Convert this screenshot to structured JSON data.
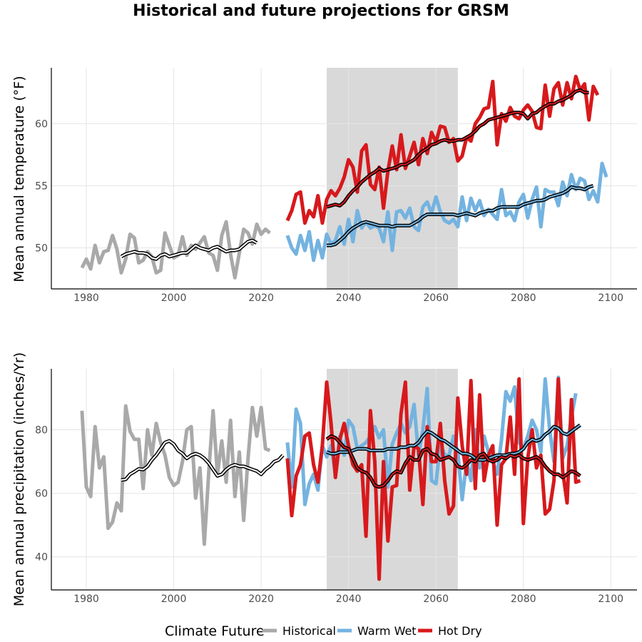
{
  "title": "Historical and future projections for GRSM",
  "colors": {
    "historical": "#a9a9a9",
    "warm_wet": "#74b3e0",
    "hot_dry": "#d7191c",
    "smooth": "#000000",
    "shade": "#d9d9d9",
    "grid": "#e5e5e5"
  },
  "legend": {
    "title": "Climate Future",
    "items": [
      {
        "label": "Historical",
        "color": "#a9a9a9"
      },
      {
        "label": "Warm Wet",
        "color": "#74b3e0"
      },
      {
        "label": "Hot Dry",
        "color": "#d7191c"
      }
    ]
  },
  "chart_data": [
    {
      "type": "line",
      "ylabel": "Mean annual temperature (°F)",
      "xlim": [
        1972,
        2106
      ],
      "ylim": [
        46.7,
        64.5
      ],
      "xticks": [
        1980,
        2000,
        2020,
        2040,
        2060,
        2080,
        2100
      ],
      "yticks": [
        50,
        55,
        60
      ],
      "shaded_period": [
        2035,
        2065
      ],
      "series": [
        {
          "name": "Historical",
          "key": "historical",
          "x_start": 1979,
          "values": [
            48.4,
            49.1,
            48.3,
            50.2,
            48.8,
            49.7,
            49.8,
            51.0,
            49.9,
            48.0,
            49.1,
            51.1,
            50.8,
            48.8,
            49.0,
            49.7,
            49.3,
            48.0,
            48.2,
            51.2,
            50.2,
            49.2,
            49.4,
            50.9,
            49.4,
            50.2,
            49.9,
            50.4,
            50.9,
            49.6,
            49.4,
            48.2,
            51.0,
            52.1,
            49.5,
            47.6,
            49.6,
            51.5,
            51.2,
            50.3,
            51.9,
            51.1,
            51.5,
            51.2
          ],
          "smooth_x_start": 1988,
          "smooth": [
            49.3,
            49.5,
            49.6,
            49.7,
            49.6,
            49.6,
            49.5,
            49.2,
            49.1,
            49.4,
            49.5,
            49.3,
            49.4,
            49.5,
            49.6,
            49.6,
            49.9,
            50.2,
            50.0,
            49.9,
            49.8,
            50.0,
            50.1,
            49.9,
            49.7,
            49.8,
            49.8,
            49.9,
            50.2,
            50.5,
            50.6,
            50.4
          ]
        },
        {
          "name": "Warm Wet",
          "key": "warm_wet",
          "x_start": 2026,
          "values": [
            51.0,
            50.0,
            49.5,
            51.0,
            49.8,
            51.3,
            49.0,
            50.6,
            49.2,
            51.1,
            50.3,
            50.6,
            51.7,
            50.3,
            52.3,
            50.5,
            53.0,
            51.6,
            52.1,
            51.6,
            51.8,
            51.6,
            50.5,
            52.9,
            49.8,
            52.9,
            53.0,
            52.4,
            53.2,
            51.7,
            51.4,
            53.3,
            53.7,
            52.8,
            54.1,
            52.9,
            52.2,
            52.0,
            52.3,
            51.7,
            54.1,
            52.2,
            54.0,
            53.0,
            53.8,
            52.6,
            53.1,
            52.7,
            52.3,
            54.7,
            52.6,
            52.9,
            52.2,
            53.7,
            54.3,
            52.4,
            53.9,
            54.9,
            51.7,
            54.7,
            54.5,
            54.5,
            53.4,
            55.3,
            54.2,
            55.9,
            54.7,
            55.6,
            55.4,
            53.9,
            54.6,
            53.7,
            56.8,
            55.7
          ],
          "smooth_x_start": 2035,
          "smooth": [
            50.2,
            50.2,
            50.3,
            50.6,
            50.9,
            51.3,
            51.6,
            51.8,
            52.0,
            52.1,
            52.0,
            51.9,
            51.8,
            51.8,
            51.8,
            51.7,
            51.8,
            51.8,
            51.8,
            51.8,
            52.0,
            52.2,
            52.5,
            52.7,
            52.7,
            52.7,
            52.7,
            52.7,
            52.7,
            52.7,
            52.6,
            52.7,
            52.8,
            52.7,
            52.6,
            52.8,
            52.9,
            53.0,
            53.0,
            53.2,
            53.3,
            53.3,
            53.3,
            53.3,
            53.3,
            53.5,
            53.6,
            53.7,
            53.8,
            53.8,
            53.9,
            54.1,
            54.2,
            54.3,
            54.4,
            54.6,
            54.9,
            54.8,
            54.8,
            54.7,
            54.9,
            55.0
          ]
        },
        {
          "name": "Hot Dry",
          "key": "hot_dry",
          "x_start": 2026,
          "values": [
            52.2,
            53.0,
            54.3,
            54.5,
            52.0,
            53.0,
            52.5,
            54.2,
            52.0,
            53.9,
            54.6,
            54.2,
            54.8,
            55.7,
            57.1,
            56.5,
            54.5,
            57.8,
            58.3,
            55.1,
            54.7,
            56.5,
            53.2,
            56.2,
            58.2,
            56.3,
            59.1,
            56.4,
            57.4,
            58.5,
            56.7,
            58.8,
            57.6,
            59.3,
            58.5,
            59.8,
            59.7,
            58.5,
            58.8,
            57.0,
            57.4,
            58.9,
            58.6,
            60.0,
            60.5,
            61.2,
            61.3,
            63.4,
            58.3,
            60.8,
            60.2,
            61.3,
            60.6,
            60.4,
            61.1,
            61.5,
            61.0,
            59.7,
            59.6,
            63.1,
            60.6,
            62.8,
            63.3,
            61.5,
            63.3,
            62.0,
            63.8,
            62.7,
            63.2,
            60.3,
            63.0,
            62.3
          ],
          "smooth_x_start": 2035,
          "smooth": [
            53.3,
            53.4,
            53.5,
            53.4,
            53.7,
            54.2,
            54.6,
            54.9,
            55.3,
            55.6,
            55.9,
            56.1,
            56.4,
            56.2,
            56.3,
            56.4,
            56.5,
            56.7,
            56.7,
            56.9,
            57.1,
            57.5,
            57.8,
            58.0,
            58.3,
            58.4,
            58.6,
            58.7,
            58.6,
            58.6,
            58.7,
            58.7,
            58.9,
            59.1,
            59.4,
            59.8,
            60.0,
            60.3,
            60.4,
            60.5,
            60.6,
            60.7,
            60.8,
            60.9,
            60.9,
            60.8,
            60.4,
            60.8,
            60.9,
            61.2,
            61.4,
            61.6,
            61.6,
            61.8,
            61.9,
            62.1,
            62.3,
            62.6,
            62.7,
            62.5,
            62.5
          ]
        }
      ]
    },
    {
      "type": "line",
      "ylabel": "Mean annual precipitation (inches/Yr)",
      "xlim": [
        1972,
        2106
      ],
      "ylim": [
        29.6,
        99.2
      ],
      "xticks": [
        1980,
        2000,
        2020,
        2040,
        2060,
        2080,
        2100
      ],
      "yticks": [
        40,
        60,
        80
      ],
      "shaded_period": [
        2035,
        2065
      ],
      "series": [
        {
          "name": "Historical",
          "key": "historical",
          "x_start": 1979,
          "values": [
            86.0,
            62.0,
            59.0,
            81.0,
            68.0,
            71.5,
            49.0,
            51.0,
            57.0,
            54.5,
            87.5,
            79.5,
            77.0,
            77.0,
            61.5,
            80.0,
            72.0,
            82.0,
            76.0,
            72.0,
            65.0,
            62.5,
            63.5,
            70.0,
            80.0,
            81.0,
            58.5,
            68.0,
            44.0,
            66.5,
            86.0,
            66.0,
            76.5,
            63.5,
            83.0,
            59.0,
            73.0,
            51.5,
            71.0,
            87.0,
            78.0,
            87.0,
            74.0,
            73.5
          ],
          "smooth_x_start": 1988,
          "smooth": [
            64.2,
            64.4,
            66.0,
            66.8,
            67.7,
            67.5,
            68.5,
            70.5,
            72.0,
            74.0,
            76.0,
            76.5,
            75.5,
            73.5,
            72.5,
            71.0,
            72.0,
            72.5,
            72.0,
            71.0,
            69.5,
            67.5,
            65.5,
            66.0,
            67.5,
            68.5,
            69.0,
            68.5,
            68.5,
            68.0,
            67.5,
            67.0,
            66.0,
            67.5,
            68.5,
            70.0,
            70.5,
            72.0
          ]
        },
        {
          "name": "Warm Wet",
          "key": "warm_wet",
          "x_start": 2026,
          "values": [
            76.0,
            62.0,
            86.5,
            82.0,
            56.5,
            63.0,
            66.0,
            61.0,
            75.0,
            71.5,
            75.0,
            66.0,
            78.0,
            72.0,
            83.0,
            81.0,
            74.0,
            75.0,
            76.0,
            78.0,
            81.0,
            77.5,
            80.0,
            62.0,
            75.5,
            79.0,
            82.0,
            79.0,
            81.0,
            88.0,
            72.0,
            80.0,
            93.0,
            64.0,
            63.0,
            76.0,
            72.0,
            72.0,
            78.0,
            73.0,
            58.0,
            70.0,
            64.0,
            80.0,
            68.0,
            78.0,
            73.0,
            70.0,
            66.0,
            77.0,
            92.0,
            89.0,
            93.5,
            76.0,
            74.0,
            78.0,
            83.0,
            80.0,
            73.0,
            96.0,
            80.0,
            70.0,
            96.5,
            71.0,
            75.0,
            84.0,
            91.5
          ],
          "smooth_x_start": 2035,
          "smooth": [
            73.0,
            72.5,
            72.5,
            73.0,
            73.0,
            73.0,
            73.5,
            74.0,
            74.0,
            74.0,
            73.5,
            73.5,
            73.5,
            73.5,
            74.0,
            74.0,
            74.0,
            74.5,
            74.5,
            75.0,
            75.0,
            76.0,
            78.0,
            79.5,
            79.0,
            78.0,
            77.0,
            76.5,
            75.5,
            74.5,
            73.5,
            72.5,
            72.5,
            72.0,
            71.0,
            70.5,
            70.5,
            71.0,
            71.5,
            72.0,
            72.0,
            72.0,
            72.5,
            72.5,
            73.0,
            74.0,
            76.0,
            77.0,
            76.5,
            77.0,
            78.5,
            79.5,
            81.0,
            80.5,
            79.0,
            78.5,
            79.5,
            80.5,
            81.5
          ]
        },
        {
          "name": "Hot Dry",
          "key": "hot_dry",
          "x_start": 2026,
          "values": [
            71.0,
            53.0,
            65.5,
            69.0,
            78.0,
            79.0,
            69.0,
            63.5,
            75.0,
            95.0,
            82.0,
            65.0,
            77.0,
            82.0,
            75.0,
            69.0,
            67.0,
            69.0,
            46.5,
            86.0,
            70.0,
            33.0,
            70.0,
            45.0,
            62.0,
            62.5,
            85.0,
            95.0,
            61.0,
            75.0,
            74.0,
            56.5,
            81.0,
            70.0,
            70.0,
            82.0,
            64.0,
            53.5,
            56.0,
            90.0,
            75.0,
            66.0,
            95.5,
            61.5,
            91.0,
            64.0,
            72.0,
            75.0,
            50.0,
            69.0,
            71.0,
            84.0,
            66.0,
            96.0,
            50.5,
            71.0,
            80.0,
            68.0,
            72.0,
            53.5,
            55.0,
            64.0,
            96.0,
            67.0,
            57.0,
            89.5,
            63.5,
            64.0
          ],
          "smooth_x_start": 2035,
          "smooth": [
            77.0,
            78.0,
            77.5,
            76.0,
            74.5,
            74.0,
            71.0,
            68.0,
            67.0,
            66.5,
            65.0,
            62.5,
            62.0,
            62.5,
            64.0,
            66.0,
            67.0,
            66.5,
            69.5,
            71.5,
            70.5,
            70.5,
            73.5,
            74.0,
            72.5,
            72.0,
            70.5,
            71.0,
            71.5,
            70.5,
            68.5,
            68.0,
            69.0,
            70.5,
            70.0,
            72.0,
            72.5,
            70.5,
            70.0,
            70.5,
            71.5,
            71.0,
            72.0,
            71.5,
            72.0,
            71.0,
            70.5,
            71.0,
            71.5,
            70.5,
            68.5,
            67.0,
            66.0,
            66.0,
            65.0,
            66.0,
            67.0,
            66.5,
            65.5
          ]
        }
      ]
    }
  ]
}
